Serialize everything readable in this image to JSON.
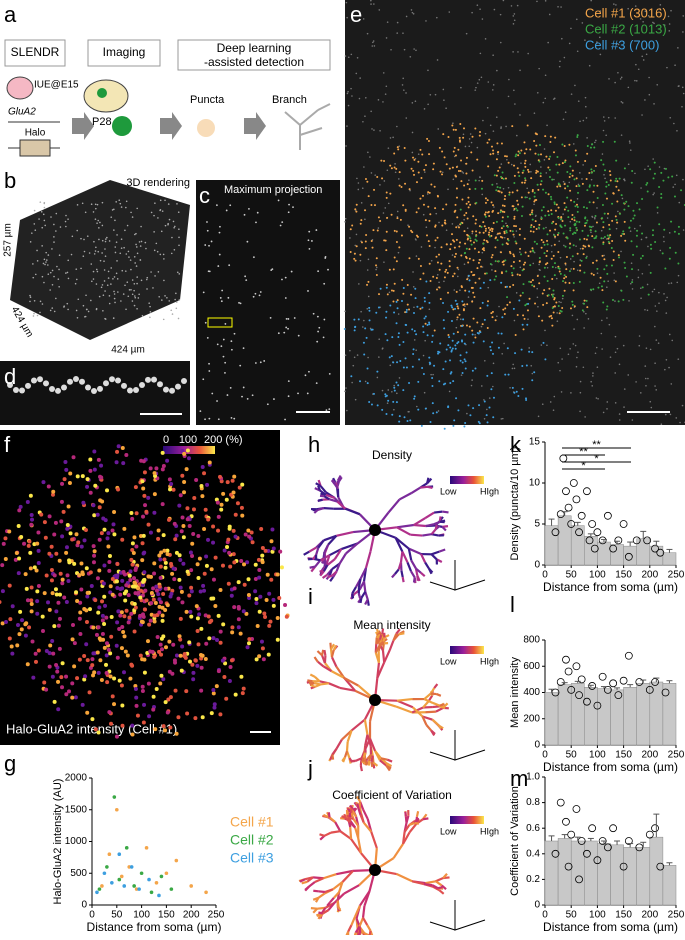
{
  "panel_labels": [
    "a",
    "b",
    "c",
    "d",
    "e",
    "f",
    "g",
    "h",
    "i",
    "j",
    "k",
    "l",
    "m"
  ],
  "diagram": {
    "steps": [
      [
        "SLENDR"
      ],
      [
        "Imaging"
      ],
      [
        "Deep learning",
        "-assisted detection"
      ]
    ],
    "labels": {
      "iue": "IUE@E15",
      "gene": "GluA2",
      "tag": "Halo",
      "age": "P28",
      "puncta": "Puncta",
      "branch": "Branch"
    }
  },
  "panel_b": {
    "title": "3D rendering",
    "dims": [
      "257 µm",
      "424 µm",
      "424 µm"
    ]
  },
  "panel_c": {
    "title": "Maximum projection"
  },
  "panel_e": {
    "legend": [
      {
        "label": "Cell #1 (3016)",
        "color": "#f4a54a"
      },
      {
        "label": "Cell #2 (1013)",
        "color": "#3aa845"
      },
      {
        "label": "Cell #3 (700)",
        "color": "#3d9fe0"
      }
    ]
  },
  "panel_f": {
    "caption": "Halo-GluA2 intensity (Cell #1)",
    "colorbar_ticks": [
      0,
      100,
      {
        "value": 200,
        "label": "200 (%)"
      }
    ]
  },
  "panel_h": {
    "title": "Density",
    "low": "Low",
    "high": "HIgh"
  },
  "panel_i": {
    "title": "Mean intensity",
    "low": "Low",
    "high": "HIgh"
  },
  "panel_j": {
    "title": "Coefficient of Variation",
    "low": "Low",
    "high": "HIgh"
  },
  "chart_data": [
    {
      "type": "scatter",
      "xlabel": "Distance from soma (µm)",
      "ylabel": "Halo-GluA2 intensity (AU)",
      "xlim": [
        0,
        250
      ],
      "xticks": [
        0,
        50,
        100,
        150,
        200,
        250
      ],
      "ylim": [
        0,
        2000
      ],
      "yticks": [
        0,
        500,
        1000,
        1500,
        2000
      ],
      "series": [
        {
          "name": "Cell #1",
          "color": "#f4a54a",
          "x": [
            20,
            35,
            50,
            60,
            75,
            90,
            110,
            130,
            150,
            170,
            200,
            230
          ],
          "values": [
            300,
            800,
            1500,
            450,
            600,
            250,
            900,
            350,
            500,
            700,
            300,
            200
          ]
        },
        {
          "name": "Cell #2",
          "color": "#3aa845",
          "x": [
            15,
            30,
            45,
            55,
            70,
            85,
            100,
            120,
            140,
            160
          ],
          "values": [
            250,
            600,
            1700,
            400,
            900,
            300,
            500,
            200,
            450,
            250
          ]
        },
        {
          "name": "Cell #3",
          "color": "#3d9fe0",
          "x": [
            10,
            25,
            40,
            55,
            65,
            80,
            95,
            115,
            135
          ],
          "values": [
            200,
            500,
            350,
            800,
            300,
            600,
            250,
            400,
            150
          ]
        }
      ]
    },
    {
      "type": "histogram",
      "xlabel": "Distance from soma (µm)",
      "ylabel": "Density (puncta/10 µm)",
      "color": "#c8c8c8",
      "xlim": [
        0,
        250
      ],
      "xticks": [
        0,
        50,
        100,
        150,
        200,
        250
      ],
      "ylim": [
        0,
        15
      ],
      "yticks": [
        0,
        5,
        10,
        15
      ],
      "bins": [
        0,
        25,
        50,
        75,
        100,
        125,
        150,
        175,
        200,
        225,
        250
      ],
      "values": [
        4.8,
        6,
        4.8,
        3.5,
        2.8,
        2.5,
        2.3,
        3.2,
        2.3,
        1.5
      ],
      "errors": [
        0.8,
        0.5,
        0.4,
        0.3,
        0.3,
        0.4,
        0.5,
        0.9,
        0.6,
        0.4
      ],
      "points_x": [
        20,
        30,
        35,
        40,
        45,
        50,
        55,
        60,
        65,
        70,
        80,
        85,
        90,
        95,
        100,
        110,
        120,
        130,
        140,
        150,
        160,
        175,
        195,
        210,
        220
      ],
      "points_y": [
        4,
        6.2,
        13,
        9,
        7,
        5,
        10,
        8,
        4,
        6,
        9,
        3,
        5,
        2,
        4,
        3,
        6,
        2,
        3,
        5,
        1,
        3,
        3,
        2,
        1.5
      ],
      "annotations": [
        "**",
        "**",
        "*",
        "*"
      ]
    },
    {
      "type": "histogram",
      "xlabel": "Distance from soma (µm)",
      "ylabel": "Mean intensity",
      "color": "#c8c8c8",
      "xlim": [
        0,
        250
      ],
      "xticks": [
        0,
        50,
        100,
        150,
        200,
        250
      ],
      "ylim": [
        0,
        800
      ],
      "yticks": [
        0,
        200,
        400,
        600,
        800
      ],
      "bins": [
        0,
        25,
        50,
        75,
        100,
        125,
        150,
        175,
        200,
        225,
        250
      ],
      "values": [
        400,
        460,
        470,
        440,
        430,
        420,
        440,
        470,
        480,
        470
      ],
      "errors": [
        25,
        15,
        15,
        15,
        15,
        15,
        20,
        25,
        30,
        20
      ],
      "points_x": [
        20,
        30,
        40,
        45,
        50,
        60,
        65,
        70,
        80,
        90,
        100,
        110,
        120,
        130,
        140,
        150,
        160,
        180,
        200,
        210,
        230
      ],
      "points_y": [
        400,
        480,
        650,
        560,
        420,
        600,
        380,
        500,
        330,
        450,
        300,
        520,
        420,
        470,
        380,
        490,
        680,
        480,
        420,
        480,
        400
      ]
    },
    {
      "type": "histogram",
      "xlabel": "Distance from soma (µm)",
      "ylabel": "Coefficient of Variation",
      "color": "#c8c8c8",
      "xlim": [
        0,
        250
      ],
      "xticks": [
        0,
        50,
        100,
        150,
        200,
        250
      ],
      "ylim": [
        0,
        1
      ],
      "yticks": [
        0,
        0.2,
        0.4,
        0.6,
        0.8,
        {
          "value": 1,
          "label": "1.0"
        }
      ],
      "bins": [
        0,
        25,
        50,
        75,
        100,
        125,
        150,
        175,
        200,
        225,
        250
      ],
      "values": [
        0.5,
        0.52,
        0.5,
        0.5,
        0.48,
        0.47,
        0.45,
        0.45,
        0.53,
        0.31
      ],
      "errors": [
        0.04,
        0.03,
        0.03,
        0.02,
        0.02,
        0.03,
        0.03,
        0.04,
        0.18,
        0.02
      ],
      "points_x": [
        20,
        30,
        40,
        45,
        50,
        60,
        65,
        70,
        80,
        90,
        100,
        110,
        120,
        130,
        150,
        160,
        180,
        200,
        210,
        220
      ],
      "points_y": [
        0.4,
        0.8,
        0.65,
        0.3,
        0.55,
        0.75,
        0.2,
        0.5,
        0.4,
        0.6,
        0.35,
        0.5,
        0.45,
        0.6,
        0.3,
        0.5,
        0.45,
        0.55,
        0.6,
        0.3
      ]
    }
  ]
}
